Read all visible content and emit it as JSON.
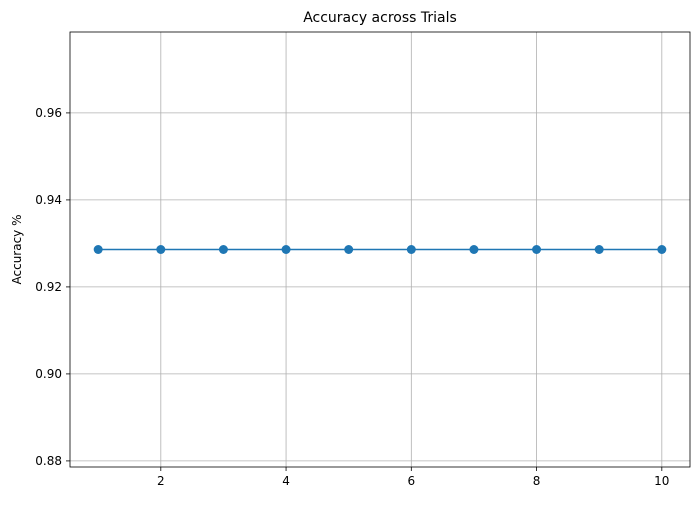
{
  "chart_data": {
    "type": "line",
    "title": "Accuracy across Trials",
    "xlabel": "",
    "ylabel": "Accuracy %",
    "x": [
      1,
      2,
      3,
      4,
      5,
      6,
      7,
      8,
      9,
      10
    ],
    "series": [
      {
        "values": [
          0.9286,
          0.9286,
          0.9286,
          0.9286,
          0.9286,
          0.9286,
          0.9286,
          0.9286,
          0.9286,
          0.9286
        ],
        "color": "#1f77b4",
        "marker": "circle"
      }
    ],
    "xlim": [
      0.55,
      10.45
    ],
    "ylim": [
      0.8786,
      0.9786
    ],
    "xticks": [
      2,
      4,
      6,
      8,
      10
    ],
    "xtick_labels": [
      "2",
      "4",
      "6",
      "8",
      "10"
    ],
    "yticks": [
      0.88,
      0.9,
      0.92,
      0.94,
      0.96
    ],
    "ytick_labels": [
      "0.88",
      "0.90",
      "0.92",
      "0.94",
      "0.96"
    ],
    "grid": true,
    "legend": "none"
  }
}
